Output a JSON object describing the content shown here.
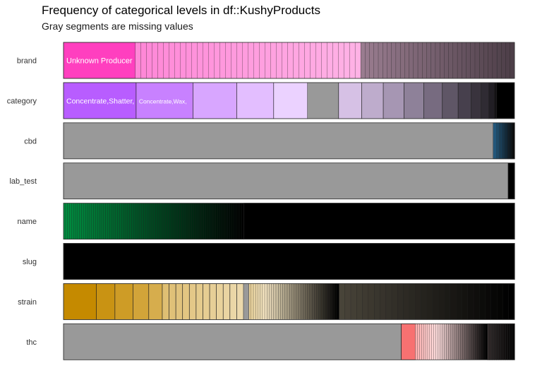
{
  "chart_data": {
    "type": "bar",
    "orientation": "horizontal-stacked",
    "title": "Frequency of categorical levels in df::KushyProducts",
    "subtitle": "Gray segments are missing values",
    "missing_color": "#999999",
    "xlim": [
      0,
      1
    ],
    "variables": [
      {
        "name": "brand",
        "base_color": "#ff3fbf",
        "segments": [
          {
            "share": 0.159,
            "label": "Unknown Producer",
            "shade": 0.0
          },
          {
            "share": 0.5,
            "shade": 0.25,
            "count": 40
          },
          {
            "share": 0.341,
            "shade": 0.7,
            "count": 35
          }
        ]
      },
      {
        "name": "category",
        "base_color": "#b85dff",
        "segments": [
          {
            "share": 0.161,
            "label": "Concentrate,Shatter,",
            "shade": 0.0
          },
          {
            "share": 0.126,
            "label": "Concentrate,Wax,",
            "shade": 0.15
          },
          {
            "share": 0.097,
            "shade": 0.3
          },
          {
            "share": 0.082,
            "shade": 0.4
          },
          {
            "share": 0.075,
            "shade": 0.48
          },
          {
            "share": 0.069,
            "missing": true
          },
          {
            "share": 0.051,
            "shade": 0.55
          },
          {
            "share": 0.048,
            "shade": 0.6
          },
          {
            "share": 0.046,
            "shade": 0.65
          },
          {
            "share": 0.044,
            "shade": 0.7
          },
          {
            "share": 0.041,
            "shade": 0.75
          },
          {
            "share": 0.035,
            "shade": 0.8
          },
          {
            "share": 0.029,
            "shade": 0.85
          },
          {
            "share": 0.022,
            "shade": 0.88
          },
          {
            "share": 0.017,
            "shade": 0.9
          },
          {
            "share": 0.012,
            "shade": 0.93
          },
          {
            "share": 0.005,
            "shade": 0.96
          }
        ]
      },
      {
        "name": "cbd",
        "base_color": "#2f8fd0",
        "segments": [
          {
            "share": 0.953,
            "missing": true
          },
          {
            "share": 0.047,
            "shade": 0.2,
            "count": 14,
            "fade": true
          }
        ]
      },
      {
        "name": "lab_test",
        "base_color": "#3cb371",
        "segments": [
          {
            "share": 0.986,
            "missing": true
          },
          {
            "share": 0.014,
            "shade": 1.0
          }
        ]
      },
      {
        "name": "name",
        "base_color": "#00b050",
        "segments": [
          {
            "share": 0.4,
            "shade": 0.2,
            "count": 90,
            "fade": true
          },
          {
            "share": 0.6,
            "shade": 1.0
          }
        ]
      },
      {
        "name": "slug",
        "base_color": "#e87b00",
        "segments": [
          {
            "share": 1.0,
            "shade": 1.0
          }
        ]
      },
      {
        "name": "strain",
        "base_color": "#c58a00",
        "segments": [
          {
            "share": 0.073,
            "shade": 0.0
          },
          {
            "share": 0.041,
            "shade": 0.05
          },
          {
            "share": 0.04,
            "shade": 0.1
          },
          {
            "share": 0.035,
            "shade": 0.15
          },
          {
            "share": 0.03,
            "shade": 0.2
          },
          {
            "share": 0.18,
            "shade": 0.3,
            "count": 12
          },
          {
            "share": 0.012,
            "missing": true
          },
          {
            "share": 0.2,
            "shade": 0.4,
            "count": 40,
            "fade": true
          },
          {
            "share": 0.389,
            "shade": 0.85,
            "count": 30,
            "fade": true
          }
        ]
      },
      {
        "name": "thc",
        "base_color": "#f77171",
        "segments": [
          {
            "share": 0.749,
            "missing": true
          },
          {
            "share": 0.031,
            "shade": 0.0
          },
          {
            "share": 0.16,
            "shade": 0.3,
            "count": 35,
            "fade": true
          },
          {
            "share": 0.06,
            "shade": 0.9,
            "count": 12,
            "fade": true
          }
        ]
      }
    ]
  }
}
